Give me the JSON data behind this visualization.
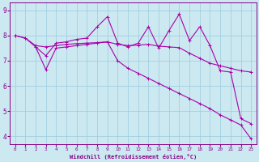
{
  "xlabel": "Windchill (Refroidissement éolien,°C)",
  "bg_color": "#cce8f0",
  "line_color": "#aa00aa",
  "grid_color": "#99ccdd",
  "xlim": [
    -0.5,
    23.5
  ],
  "ylim": [
    3.7,
    9.3
  ],
  "yticks": [
    4,
    5,
    6,
    7,
    8,
    9
  ],
  "xticks": [
    0,
    1,
    2,
    3,
    4,
    5,
    6,
    7,
    8,
    9,
    10,
    11,
    12,
    13,
    14,
    15,
    16,
    17,
    18,
    19,
    20,
    21,
    22,
    23
  ],
  "line_jagged_x": [
    0,
    1,
    2,
    3,
    4,
    5,
    6,
    7,
    8,
    9,
    10,
    11,
    12,
    13,
    14,
    15,
    16,
    17,
    18,
    19,
    20,
    21,
    22,
    23
  ],
  "line_jagged_y": [
    8.0,
    7.9,
    7.55,
    7.2,
    7.7,
    7.75,
    7.85,
    7.9,
    8.35,
    8.75,
    7.7,
    7.55,
    7.7,
    8.35,
    7.5,
    8.2,
    8.85,
    7.8,
    8.35,
    7.6,
    6.6,
    6.55,
    4.7,
    4.5
  ],
  "line_flat_x": [
    0,
    1,
    2,
    3,
    4,
    5,
    6,
    7,
    8,
    9,
    10,
    11,
    12,
    13,
    14,
    15,
    16,
    17,
    18,
    19,
    20,
    21,
    22,
    23
  ],
  "line_flat_y": [
    8.0,
    7.9,
    7.6,
    7.55,
    7.6,
    7.65,
    7.68,
    7.7,
    7.72,
    7.75,
    7.65,
    7.6,
    7.62,
    7.65,
    7.58,
    7.55,
    7.52,
    7.3,
    7.1,
    6.9,
    6.8,
    6.7,
    6.6,
    6.55
  ],
  "line_steep_x": [
    2,
    3,
    4,
    5,
    6,
    7,
    8,
    9,
    10,
    11,
    12,
    13,
    14,
    15,
    16,
    17,
    18,
    19,
    20,
    21,
    22,
    23
  ],
  "line_steep_y": [
    7.55,
    6.65,
    7.5,
    7.55,
    7.6,
    7.65,
    7.7,
    7.75,
    7.0,
    6.7,
    6.5,
    6.3,
    6.1,
    5.9,
    5.7,
    5.5,
    5.3,
    5.1,
    4.85,
    4.65,
    4.45,
    3.9
  ],
  "marker": "+"
}
